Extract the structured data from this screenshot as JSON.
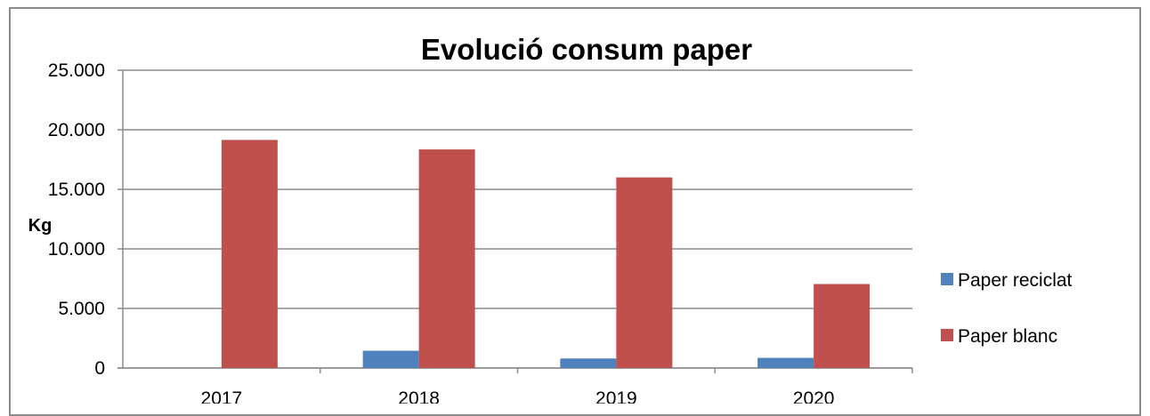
{
  "chart_data": {
    "type": "bar",
    "title": "Evolució consum paper",
    "xlabel": "",
    "ylabel": "Kg",
    "categories": [
      "2017",
      "2018",
      "2019",
      "2020"
    ],
    "series": [
      {
        "name": "Paper reciclat",
        "values": [
          0,
          1450,
          800,
          850
        ]
      },
      {
        "name": "Paper blanc",
        "values": [
          19150,
          18350,
          16000,
          7050
        ]
      }
    ],
    "ylim": [
      0,
      25000
    ],
    "yticks": [
      "0",
      "5.000",
      "10.000",
      "15.000",
      "20.000",
      "25.000"
    ],
    "grid": true,
    "legend": "right",
    "colors": {
      "Paper reciclat": "#4f81bd",
      "Paper blanc": "#c0504d"
    }
  }
}
